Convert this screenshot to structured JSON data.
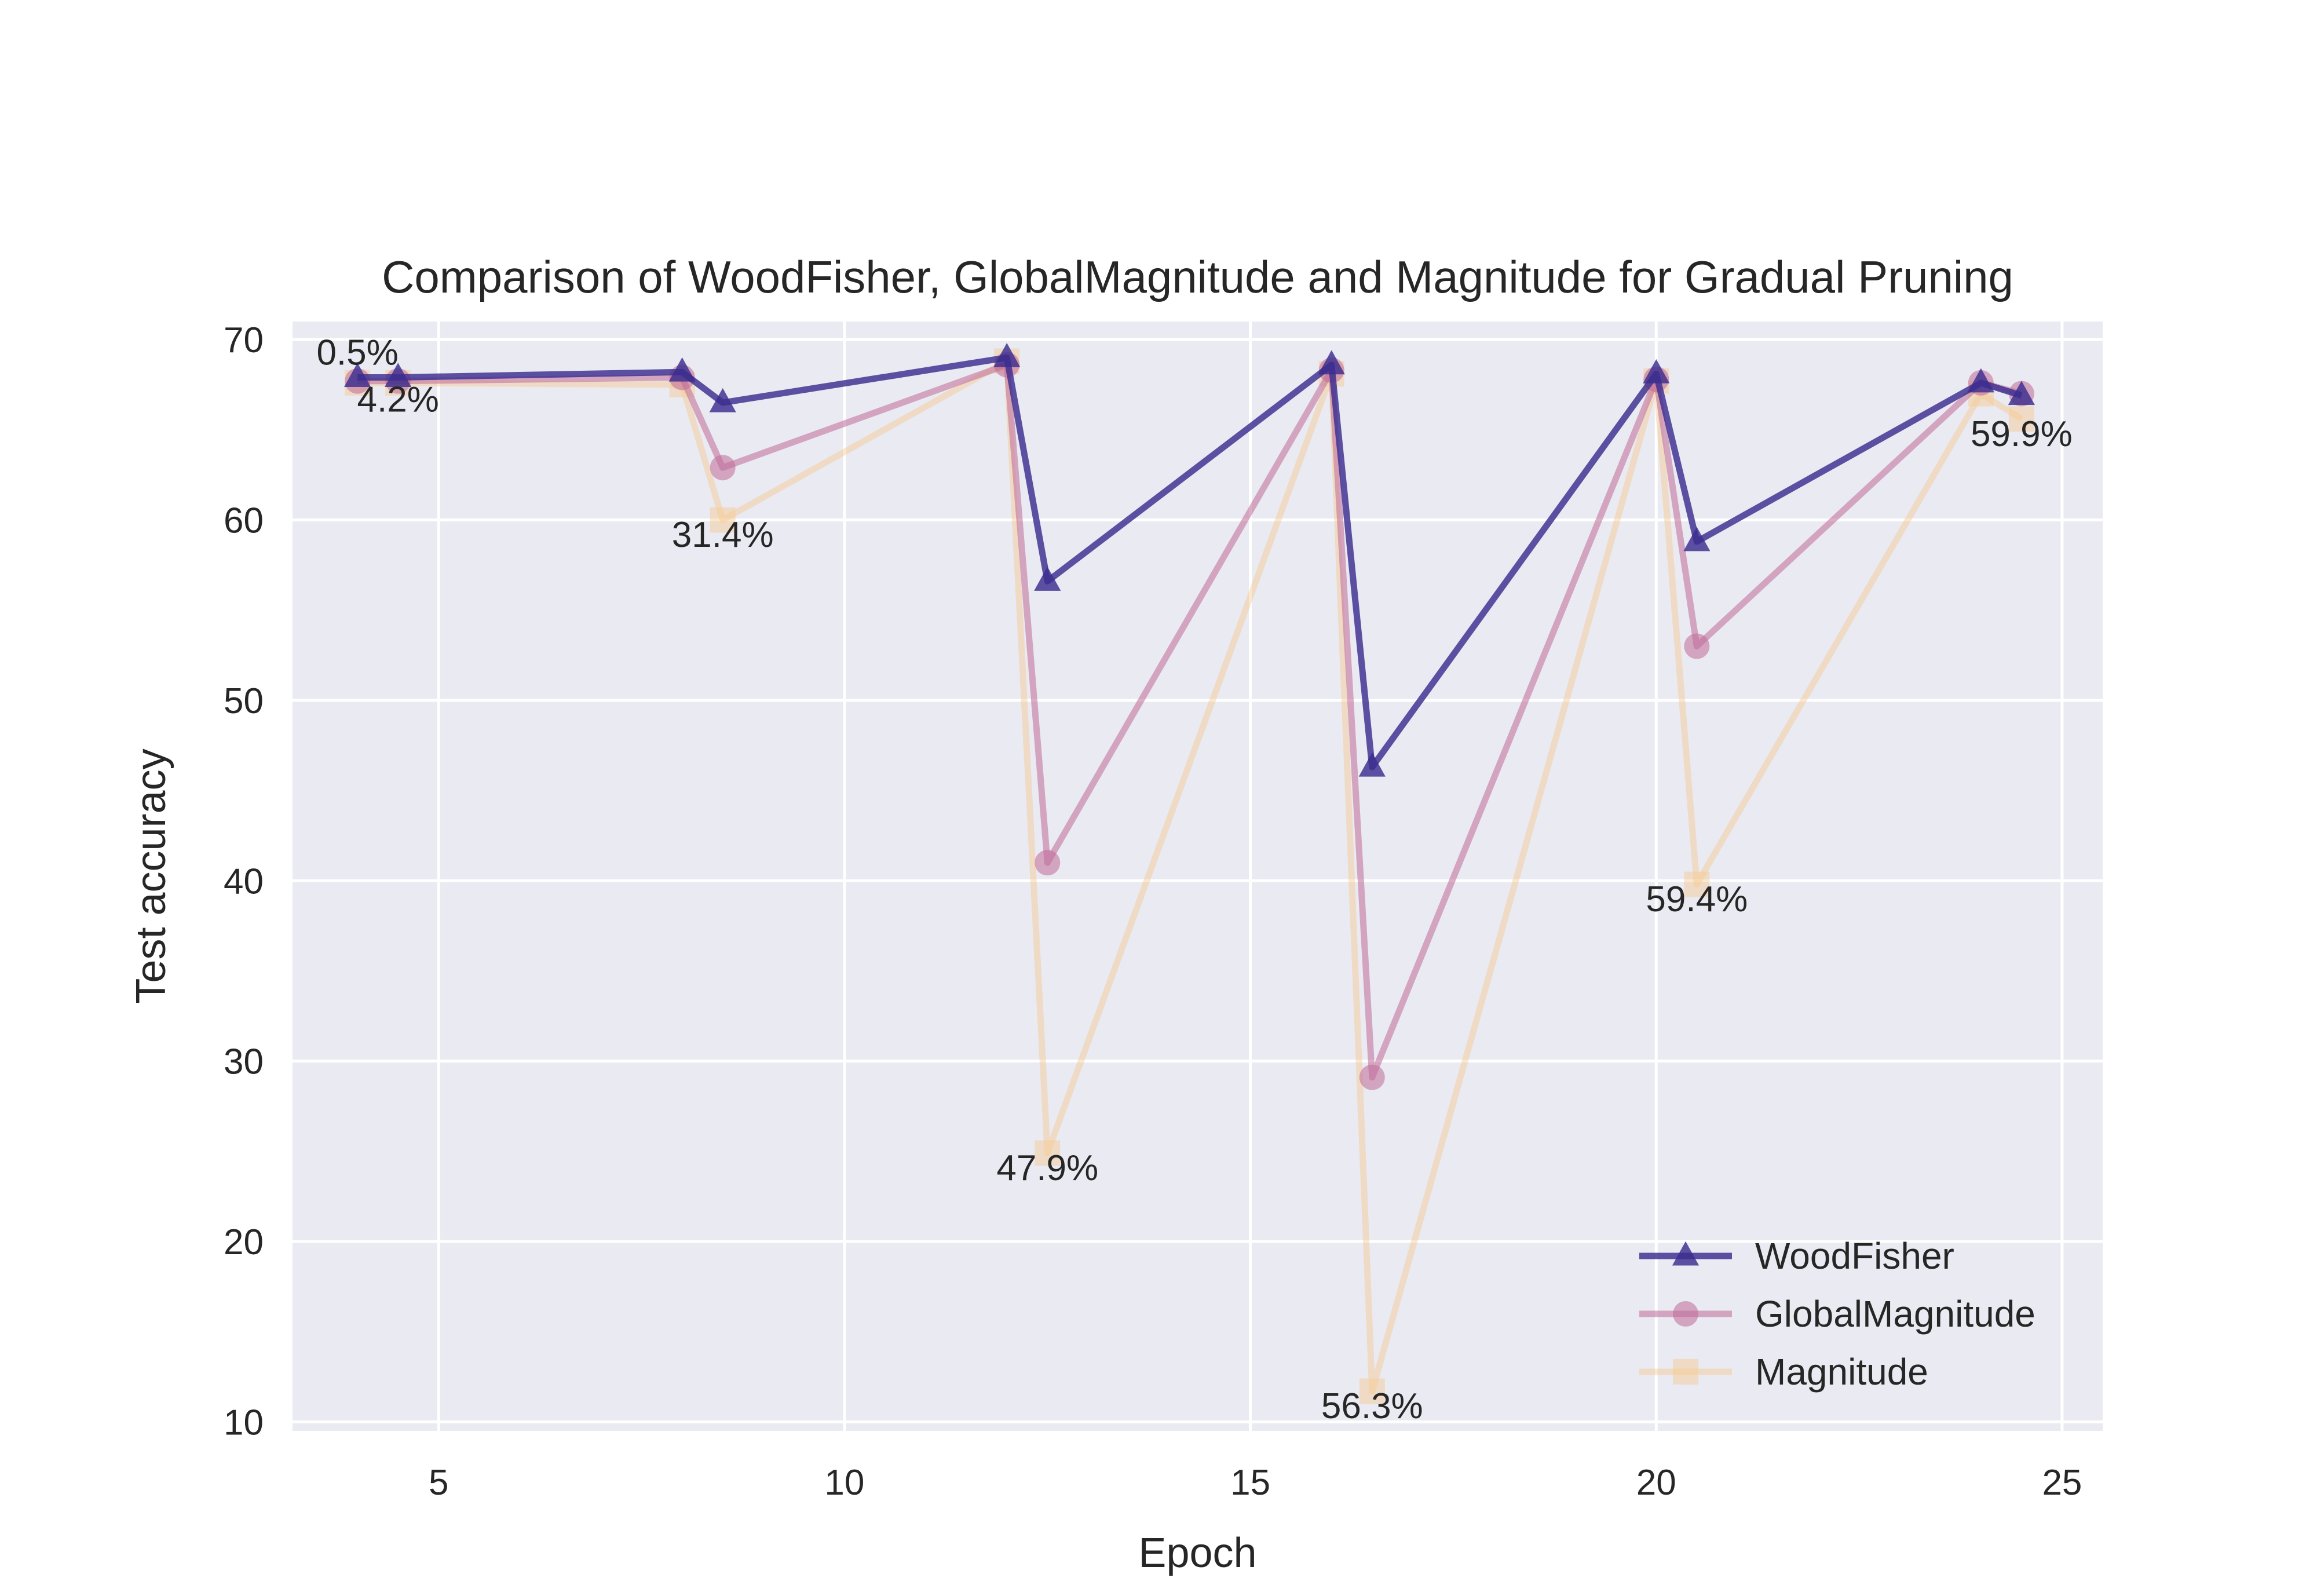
{
  "chart_data": {
    "type": "line",
    "title": "Comparison of WoodFisher, GlobalMagnitude and Magnitude for Gradual Pruning",
    "xlabel": "Epoch",
    "ylabel": "Test accuracy",
    "xlim": [
      3.2,
      25.5
    ],
    "ylim": [
      9.5,
      71.0
    ],
    "xticks": [
      5,
      10,
      15,
      20,
      25
    ],
    "yticks": [
      10,
      20,
      30,
      40,
      50,
      60,
      70
    ],
    "grid": true,
    "legend_position": "lower-right",
    "x": [
      4,
      4.5,
      8,
      8.5,
      12,
      12.5,
      16,
      16.5,
      20,
      20.5,
      24,
      24.5
    ],
    "series": [
      {
        "name": "WoodFisher",
        "color": "#3b2d8f",
        "marker": "triangle",
        "opacity": 0.82,
        "values": [
          67.9,
          67.9,
          68.2,
          66.5,
          69.0,
          56.6,
          68.6,
          46.3,
          68.1,
          58.8,
          67.6,
          66.9
        ]
      },
      {
        "name": "GlobalMagnitude",
        "color": "#c06a97",
        "marker": "circle",
        "opacity": 0.55,
        "values": [
          67.7,
          67.7,
          67.9,
          62.9,
          68.6,
          41.0,
          68.3,
          29.1,
          67.8,
          53.0,
          67.6,
          67.0
        ]
      },
      {
        "name": "Magnitude",
        "color": "#f7c98f",
        "marker": "square",
        "opacity": 0.45,
        "values": [
          67.6,
          67.6,
          67.5,
          60.0,
          68.8,
          24.9,
          68.1,
          11.7,
          67.7,
          39.8,
          67.0,
          65.6
        ]
      }
    ],
    "annotations": [
      {
        "text": "0.5%",
        "x": 4.0,
        "y": 68.6
      },
      {
        "text": "4.2%",
        "x": 4.5,
        "y": 66.0
      },
      {
        "text": "31.4%",
        "x": 8.5,
        "y": 58.5
      },
      {
        "text": "47.9%",
        "x": 12.5,
        "y": 23.4
      },
      {
        "text": "56.3%",
        "x": 16.5,
        "y": 10.2
      },
      {
        "text": "59.4%",
        "x": 20.5,
        "y": 38.3
      },
      {
        "text": "59.9%",
        "x": 24.5,
        "y": 64.1
      }
    ]
  }
}
